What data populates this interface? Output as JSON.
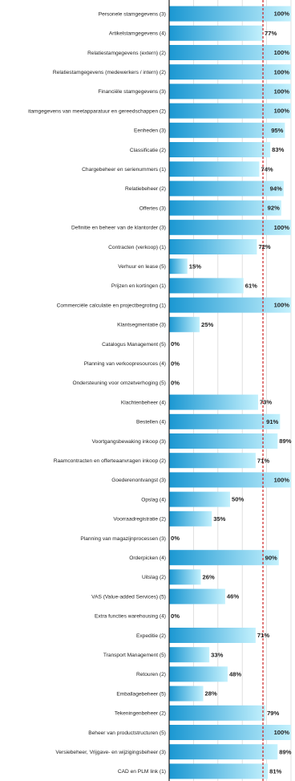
{
  "chart_data": {
    "type": "bar",
    "orientation": "horizontal",
    "title": "",
    "xlabel": "",
    "ylabel": "",
    "xlim": [
      0,
      100
    ],
    "grid": true,
    "value_suffix": "%",
    "reference_line_value": 77,
    "colors": {
      "bar_dark": "#1a97d2",
      "bar_light": "#c4f1fd",
      "reference_line": "#cc2222",
      "grid": "#d8d8d8",
      "axis": "#222222"
    },
    "categories": [
      "Personele stamgegevens (3)",
      "Artikelstamgegevens (4)",
      "Relatiestamgegevens (extern) (2)",
      "Relatiestamgegevens (medewerkers / intern) (2)",
      "Financiële stamgegevens (3)",
      "itamgegevens van meetapparatuur en gereedschappen (2)",
      "Eenheden (3)",
      "Classificatie (2)",
      "Chargebeheer en serienummers (1)",
      "Relatiebeheer (2)",
      "Offertes (3)",
      "Definitie en beheer van de klantorder (3)",
      "Contracten (verkoop) (1)",
      "Verhuur en lease (5)",
      "Prijzen en kortingen (1)",
      "Commerciële calculatie en projectbegroting (1)",
      "Klantsegmentatie (3)",
      "Catalogus Management (5)",
      "Planning van verkoopresources (4)",
      "Ondersteuning voor omzetverhoging (5)",
      "Klachtenbeheer (4)",
      "Bestellen (4)",
      "Voortgangsbewaking inkoop (3)",
      "Raamcontracten en offerteaanvragen inkoop (2)",
      "Goederenontvangst (3)",
      "Opslag (4)",
      "Voorraadregistratie (2)",
      "Planning van magazijnprocessen (3)",
      "Orderpicken (4)",
      "Uitslag (2)",
      "VAS (Value-added Services) (5)",
      "Extra functies warehousing (4)",
      "Expeditie (2)",
      "Transport Management (5)",
      "Retouren (2)",
      "Emballagebeheer (5)",
      "Tekeningenbeheer (2)",
      "Beheer van productstructuren (5)",
      "Versiebeheer, Vrijgave- en wijzigingsbeheer (3)",
      "CAD en PLM link (1)"
    ],
    "values": [
      100,
      77,
      100,
      100,
      100,
      100,
      95,
      83,
      74,
      94,
      92,
      100,
      72,
      15,
      61,
      100,
      25,
      0,
      0,
      0,
      73,
      91,
      89,
      71,
      100,
      50,
      35,
      0,
      90,
      26,
      46,
      0,
      71,
      33,
      48,
      28,
      79,
      100,
      89,
      81
    ]
  }
}
